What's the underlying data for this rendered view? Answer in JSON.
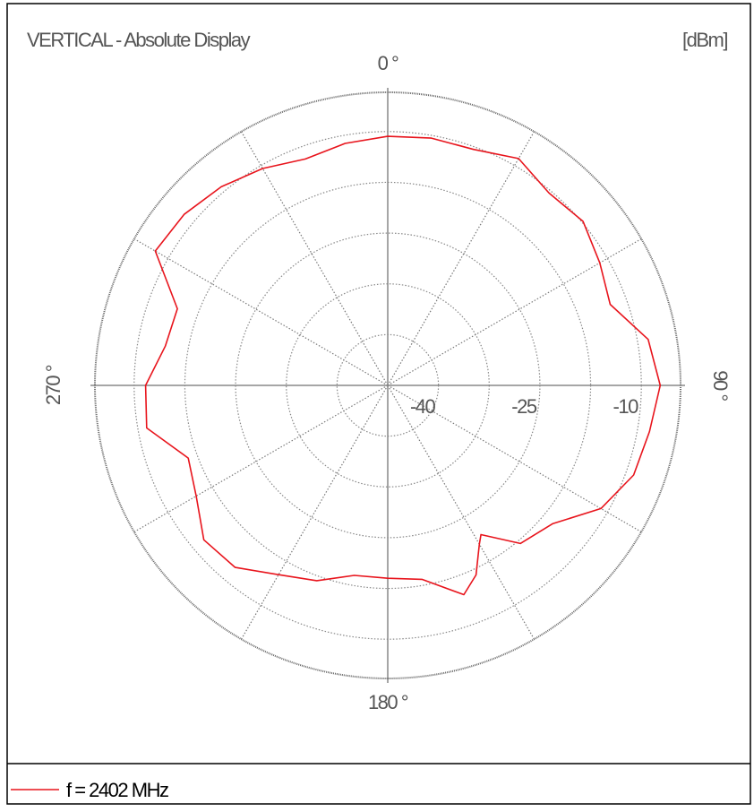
{
  "chart_data": {
    "type": "polar",
    "title": "VERTICAL - Absolute Display",
    "unit_label": "[dBm]",
    "theta_direction": "clockwise",
    "theta_zero": "top",
    "theta_labels": [
      {
        "value": 0,
        "label": "0 °"
      },
      {
        "value": 90,
        "label": "90 °"
      },
      {
        "value": 180,
        "label": "180 °"
      },
      {
        "value": 270,
        "label": "270 °"
      }
    ],
    "theta_grid": [
      30,
      60,
      120,
      150,
      210,
      240,
      300,
      330
    ],
    "rlim": [
      -47.5,
      -4.2
    ],
    "rticks": [
      -40,
      -25,
      -10
    ],
    "rgrid_minor": [
      -32.5,
      -17.5
    ],
    "series": [
      {
        "name": "f = 2402 MHz",
        "color": "#e8141c",
        "angles": [
          0,
          10,
          20,
          30,
          40,
          50,
          60,
          70,
          80,
          90,
          100,
          110,
          120,
          130,
          140,
          148,
          150,
          155,
          160,
          170,
          180,
          190,
          200,
          210,
          220,
          230,
          240,
          250,
          260,
          270,
          280,
          290,
          300,
          310,
          320,
          330,
          340,
          350
        ],
        "values": [
          -10.7,
          -10.4,
          -10.4,
          -8.8,
          -10.4,
          -9.8,
          -11.3,
          -12.5,
          -8.4,
          -7.2,
          -8.2,
          -8.8,
          -11.1,
          -15.7,
          -17.0,
          -21.5,
          -20.4,
          -16.6,
          -14.6,
          -18.4,
          -19.0,
          -19.0,
          -16.8,
          -15.2,
          -12.4,
          -12.0,
          -14.8,
          -16.1,
          -11.3,
          -11.7,
          -14.1,
          -14.4,
          -7.8,
          -8.2,
          -9.2,
          -10.5,
          -11.9,
          -11.2
        ]
      }
    ]
  }
}
